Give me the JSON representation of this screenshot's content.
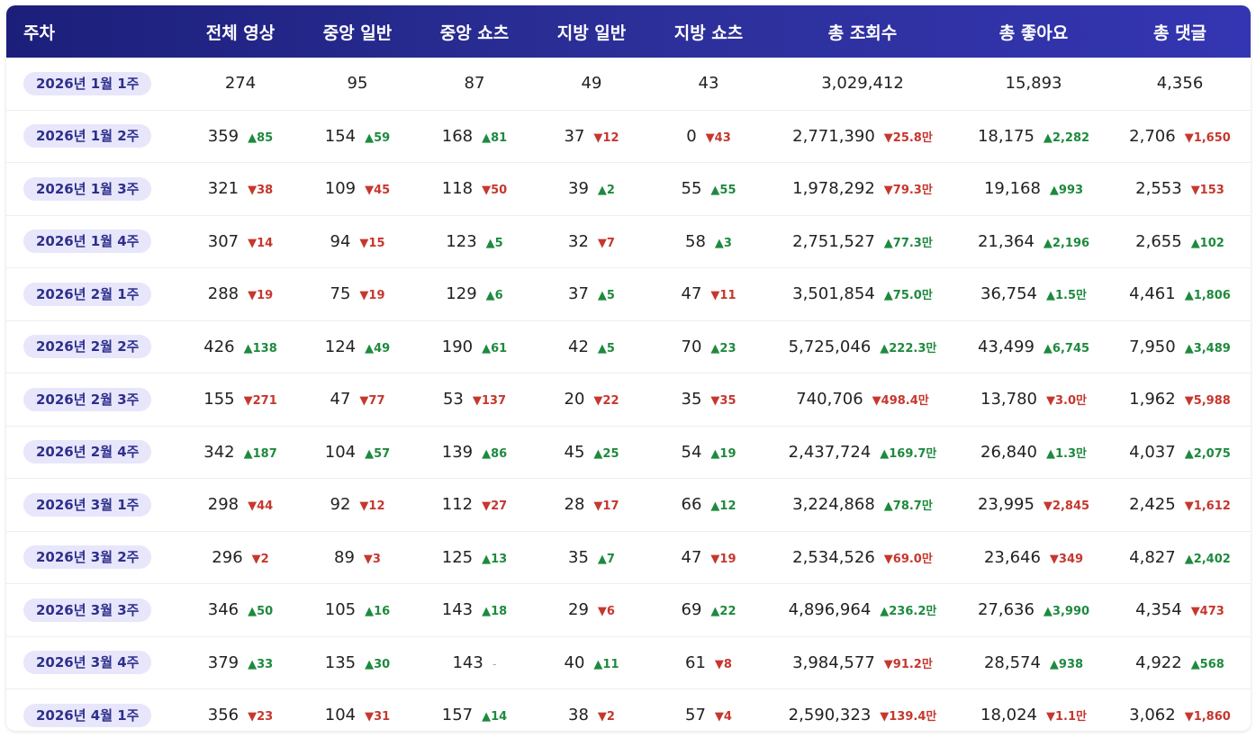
{
  "columns": [
    "주차",
    "전체 영상",
    "중앙 일반",
    "중앙 쇼츠",
    "지방 일반",
    "지방 쇼츠",
    "총 조회수",
    "총 좋아요",
    "총 댓글"
  ],
  "rows": [
    {
      "week": "2026년 1월 1주",
      "cells": [
        {
          "v": "274",
          "d": ""
        },
        {
          "v": "95",
          "d": ""
        },
        {
          "v": "87",
          "d": ""
        },
        {
          "v": "49",
          "d": ""
        },
        {
          "v": "43",
          "d": ""
        },
        {
          "v": "3,029,412",
          "d": ""
        },
        {
          "v": "15,893",
          "d": ""
        },
        {
          "v": "4,356",
          "d": ""
        }
      ]
    },
    {
      "week": "2026년 1월 2주",
      "cells": [
        {
          "v": "359",
          "d": "▲85",
          "t": "up"
        },
        {
          "v": "154",
          "d": "▲59",
          "t": "up"
        },
        {
          "v": "168",
          "d": "▲81",
          "t": "up"
        },
        {
          "v": "37",
          "d": "▼12",
          "t": "down"
        },
        {
          "v": "0",
          "d": "▼43",
          "t": "down"
        },
        {
          "v": "2,771,390",
          "d": "▼25.8만",
          "t": "down"
        },
        {
          "v": "18,175",
          "d": "▲2,282",
          "t": "up"
        },
        {
          "v": "2,706",
          "d": "▼1,650",
          "t": "down"
        }
      ]
    },
    {
      "week": "2026년 1월 3주",
      "cells": [
        {
          "v": "321",
          "d": "▼38",
          "t": "down"
        },
        {
          "v": "109",
          "d": "▼45",
          "t": "down"
        },
        {
          "v": "118",
          "d": "▼50",
          "t": "down"
        },
        {
          "v": "39",
          "d": "▲2",
          "t": "up"
        },
        {
          "v": "55",
          "d": "▲55",
          "t": "up"
        },
        {
          "v": "1,978,292",
          "d": "▼79.3만",
          "t": "down"
        },
        {
          "v": "19,168",
          "d": "▲993",
          "t": "up"
        },
        {
          "v": "2,553",
          "d": "▼153",
          "t": "down"
        }
      ]
    },
    {
      "week": "2026년 1월 4주",
      "cells": [
        {
          "v": "307",
          "d": "▼14",
          "t": "down"
        },
        {
          "v": "94",
          "d": "▼15",
          "t": "down"
        },
        {
          "v": "123",
          "d": "▲5",
          "t": "up"
        },
        {
          "v": "32",
          "d": "▼7",
          "t": "down"
        },
        {
          "v": "58",
          "d": "▲3",
          "t": "up"
        },
        {
          "v": "2,751,527",
          "d": "▲77.3만",
          "t": "up"
        },
        {
          "v": "21,364",
          "d": "▲2,196",
          "t": "up"
        },
        {
          "v": "2,655",
          "d": "▲102",
          "t": "up"
        }
      ]
    },
    {
      "week": "2026년 2월 1주",
      "cells": [
        {
          "v": "288",
          "d": "▼19",
          "t": "down"
        },
        {
          "v": "75",
          "d": "▼19",
          "t": "down"
        },
        {
          "v": "129",
          "d": "▲6",
          "t": "up"
        },
        {
          "v": "37",
          "d": "▲5",
          "t": "up"
        },
        {
          "v": "47",
          "d": "▼11",
          "t": "down"
        },
        {
          "v": "3,501,854",
          "d": "▲75.0만",
          "t": "up"
        },
        {
          "v": "36,754",
          "d": "▲1.5만",
          "t": "up"
        },
        {
          "v": "4,461",
          "d": "▲1,806",
          "t": "up"
        }
      ]
    },
    {
      "week": "2026년 2월 2주",
      "cells": [
        {
          "v": "426",
          "d": "▲138",
          "t": "up"
        },
        {
          "v": "124",
          "d": "▲49",
          "t": "up"
        },
        {
          "v": "190",
          "d": "▲61",
          "t": "up"
        },
        {
          "v": "42",
          "d": "▲5",
          "t": "up"
        },
        {
          "v": "70",
          "d": "▲23",
          "t": "up"
        },
        {
          "v": "5,725,046",
          "d": "▲222.3만",
          "t": "up"
        },
        {
          "v": "43,499",
          "d": "▲6,745",
          "t": "up"
        },
        {
          "v": "7,950",
          "d": "▲3,489",
          "t": "up"
        }
      ]
    },
    {
      "week": "2026년 2월 3주",
      "cells": [
        {
          "v": "155",
          "d": "▼271",
          "t": "down"
        },
        {
          "v": "47",
          "d": "▼77",
          "t": "down"
        },
        {
          "v": "53",
          "d": "▼137",
          "t": "down"
        },
        {
          "v": "20",
          "d": "▼22",
          "t": "down"
        },
        {
          "v": "35",
          "d": "▼35",
          "t": "down"
        },
        {
          "v": "740,706",
          "d": "▼498.4만",
          "t": "down"
        },
        {
          "v": "13,780",
          "d": "▼3.0만",
          "t": "down"
        },
        {
          "v": "1,962",
          "d": "▼5,988",
          "t": "down"
        }
      ]
    },
    {
      "week": "2026년 2월 4주",
      "cells": [
        {
          "v": "342",
          "d": "▲187",
          "t": "up"
        },
        {
          "v": "104",
          "d": "▲57",
          "t": "up"
        },
        {
          "v": "139",
          "d": "▲86",
          "t": "up"
        },
        {
          "v": "45",
          "d": "▲25",
          "t": "up"
        },
        {
          "v": "54",
          "d": "▲19",
          "t": "up"
        },
        {
          "v": "2,437,724",
          "d": "▲169.7만",
          "t": "up"
        },
        {
          "v": "26,840",
          "d": "▲1.3만",
          "t": "up"
        },
        {
          "v": "4,037",
          "d": "▲2,075",
          "t": "up"
        }
      ]
    },
    {
      "week": "2026년 3월 1주",
      "cells": [
        {
          "v": "298",
          "d": "▼44",
          "t": "down"
        },
        {
          "v": "92",
          "d": "▼12",
          "t": "down"
        },
        {
          "v": "112",
          "d": "▼27",
          "t": "down"
        },
        {
          "v": "28",
          "d": "▼17",
          "t": "down"
        },
        {
          "v": "66",
          "d": "▲12",
          "t": "up"
        },
        {
          "v": "3,224,868",
          "d": "▲78.7만",
          "t": "up"
        },
        {
          "v": "23,995",
          "d": "▼2,845",
          "t": "down"
        },
        {
          "v": "2,425",
          "d": "▼1,612",
          "t": "down"
        }
      ]
    },
    {
      "week": "2026년 3월 2주",
      "cells": [
        {
          "v": "296",
          "d": "▼2",
          "t": "down"
        },
        {
          "v": "89",
          "d": "▼3",
          "t": "down"
        },
        {
          "v": "125",
          "d": "▲13",
          "t": "up"
        },
        {
          "v": "35",
          "d": "▲7",
          "t": "up"
        },
        {
          "v": "47",
          "d": "▼19",
          "t": "down"
        },
        {
          "v": "2,534,526",
          "d": "▼69.0만",
          "t": "down"
        },
        {
          "v": "23,646",
          "d": "▼349",
          "t": "down"
        },
        {
          "v": "4,827",
          "d": "▲2,402",
          "t": "up"
        }
      ]
    },
    {
      "week": "2026년 3월 3주",
      "cells": [
        {
          "v": "346",
          "d": "▲50",
          "t": "up"
        },
        {
          "v": "105",
          "d": "▲16",
          "t": "up"
        },
        {
          "v": "143",
          "d": "▲18",
          "t": "up"
        },
        {
          "v": "29",
          "d": "▼6",
          "t": "down"
        },
        {
          "v": "69",
          "d": "▲22",
          "t": "up"
        },
        {
          "v": "4,896,964",
          "d": "▲236.2만",
          "t": "up"
        },
        {
          "v": "27,636",
          "d": "▲3,990",
          "t": "up"
        },
        {
          "v": "4,354",
          "d": "▼473",
          "t": "down"
        }
      ]
    },
    {
      "week": "2026년 3월 4주",
      "cells": [
        {
          "v": "379",
          "d": "▲33",
          "t": "up"
        },
        {
          "v": "135",
          "d": "▲30",
          "t": "up"
        },
        {
          "v": "143",
          "d": "-",
          "t": "flat"
        },
        {
          "v": "40",
          "d": "▲11",
          "t": "up"
        },
        {
          "v": "61",
          "d": "▼8",
          "t": "down"
        },
        {
          "v": "3,984,577",
          "d": "▼91.2만",
          "t": "down"
        },
        {
          "v": "28,574",
          "d": "▲938",
          "t": "up"
        },
        {
          "v": "4,922",
          "d": "▲568",
          "t": "up"
        }
      ]
    },
    {
      "week": "2026년 4월 1주",
      "cells": [
        {
          "v": "356",
          "d": "▼23",
          "t": "down"
        },
        {
          "v": "104",
          "d": "▼31",
          "t": "down"
        },
        {
          "v": "157",
          "d": "▲14",
          "t": "up"
        },
        {
          "v": "38",
          "d": "▼2",
          "t": "down"
        },
        {
          "v": "57",
          "d": "▼4",
          "t": "down"
        },
        {
          "v": "2,590,323",
          "d": "▼139.4만",
          "t": "down"
        },
        {
          "v": "18,024",
          "d": "▼1.1만",
          "t": "down"
        },
        {
          "v": "3,062",
          "d": "▼1,860",
          "t": "down"
        }
      ]
    }
  ]
}
